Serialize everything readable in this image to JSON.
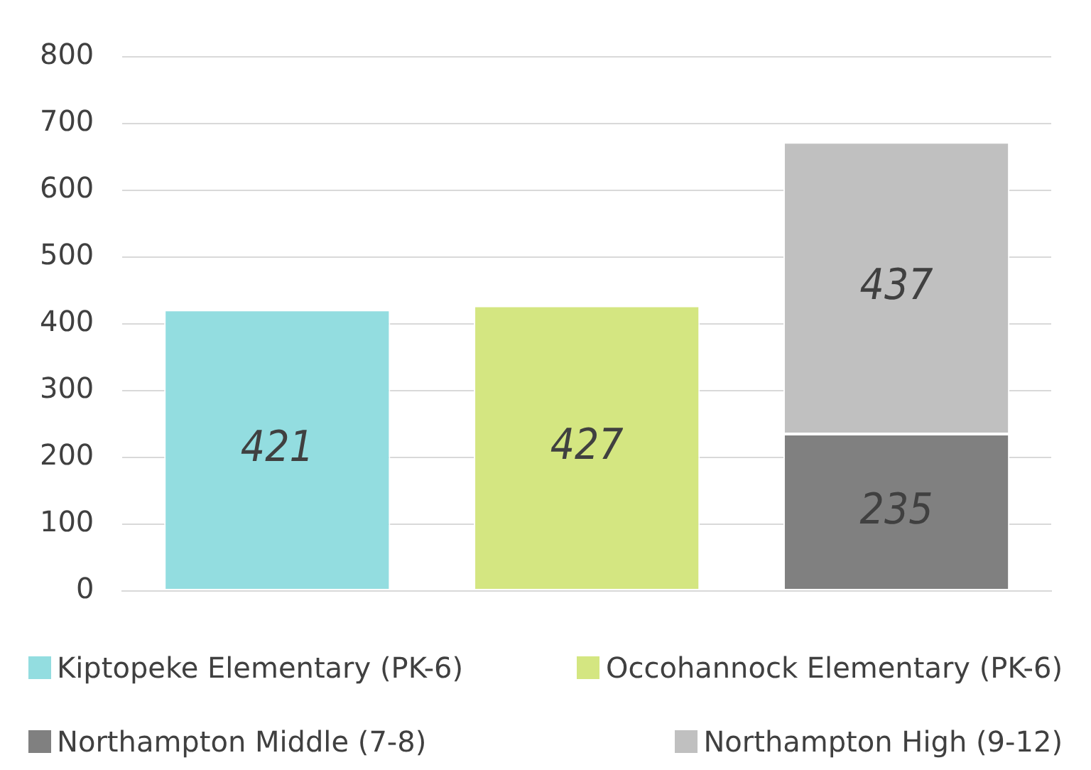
{
  "chart_data": {
    "type": "bar",
    "stacked": true,
    "categories": [
      null,
      null,
      null
    ],
    "series": [
      {
        "name": "Kiptopeke Elementary (PK-6)",
        "color": "#93dde0",
        "values": [
          421,
          null,
          null
        ]
      },
      {
        "name": "Occohannock Elementary (PK-6)",
        "color": "#d4e681",
        "values": [
          null,
          427,
          null
        ]
      },
      {
        "name": "Northampton Middle (7-8)",
        "color": "#808080",
        "values": [
          null,
          null,
          235
        ]
      },
      {
        "name": "Northampton High (9-12)",
        "color": "#c0c0c0",
        "values": [
          null,
          null,
          437
        ]
      }
    ],
    "ylim": [
      0,
      800
    ],
    "yticks": [
      0,
      100,
      200,
      300,
      400,
      500,
      600,
      700,
      800
    ],
    "grid": "y",
    "legend": "bottom",
    "data_labels": true
  }
}
